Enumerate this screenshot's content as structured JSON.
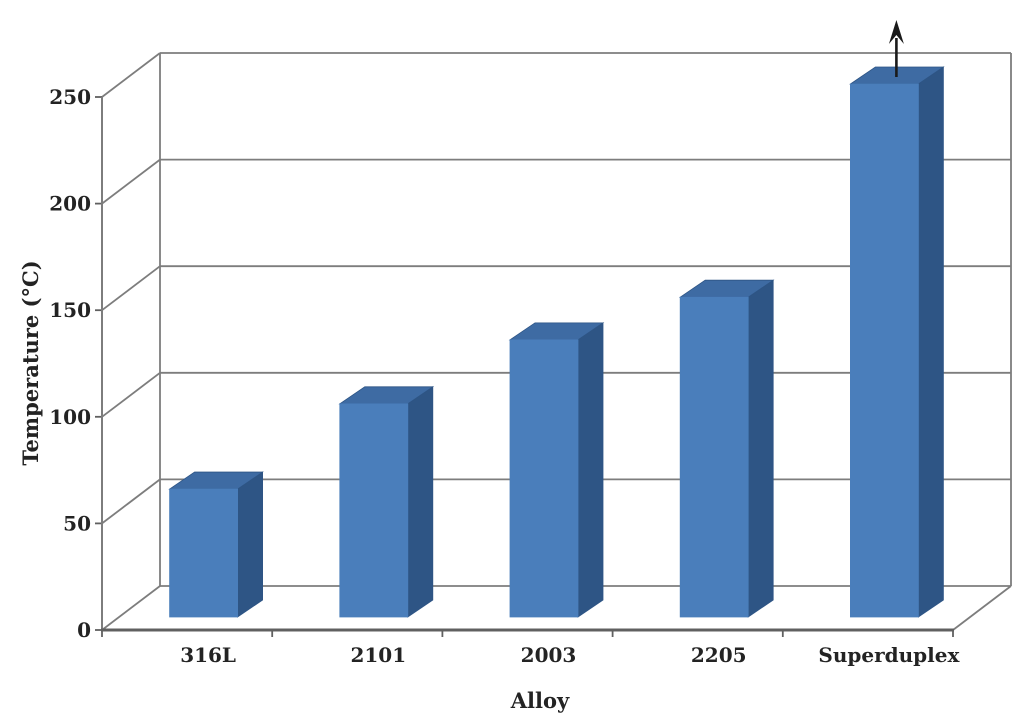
{
  "page": {
    "background_color": "#ffffff"
  },
  "chart_data": {
    "type": "bar",
    "projection": "3d",
    "title": "",
    "xlabel": "Alloy",
    "ylabel": "Temperature (°C)",
    "categories": [
      "316L",
      "2101",
      "2003",
      "2205",
      "Superduplex"
    ],
    "values": [
      60,
      100,
      130,
      150,
      250
    ],
    "value_overflow": [
      false,
      false,
      false,
      false,
      true
    ],
    "overflow_note": "Superduplex bar is capped at the axis maximum; an upward arrow indicates its value exceeds 250",
    "yticks": [
      0,
      50,
      100,
      150,
      200,
      250
    ],
    "ylim": [
      0,
      250
    ],
    "grid": true,
    "legend_position": "none",
    "colors": {
      "bar_front": "#4a7ebb",
      "bar_top": "#3e6ba3",
      "bar_side": "#2e5585",
      "gridline": "#7d7d7d",
      "axis_line": "#606060",
      "text": "#232323",
      "arrow": "#1a1a1a",
      "background": "#ffffff"
    }
  }
}
